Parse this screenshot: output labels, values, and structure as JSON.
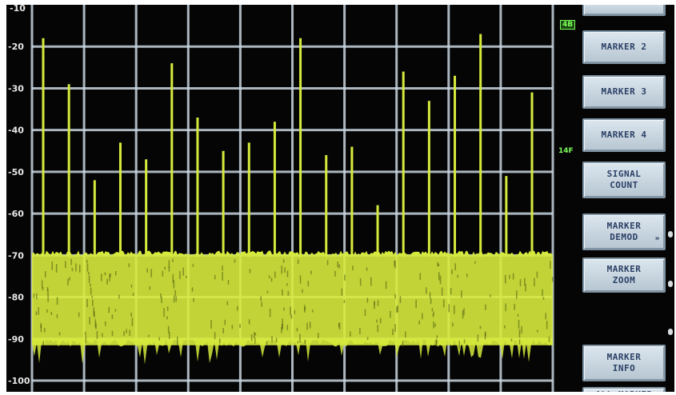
{
  "y_axis": {
    "labels": [
      "-20",
      "-30",
      "-40",
      "-50",
      "-60",
      "-70",
      "-80",
      "-90",
      "-100"
    ],
    "top_label": "-10"
  },
  "side_tags": {
    "top_tag": "4B",
    "mid_tag": "14F"
  },
  "softkeys": [
    {
      "id": "marker-1",
      "lines": [
        ""
      ]
    },
    {
      "id": "marker-2",
      "lines": [
        "MARKER 2"
      ]
    },
    {
      "id": "marker-3",
      "lines": [
        "MARKER 3"
      ]
    },
    {
      "id": "marker-4",
      "lines": [
        "MARKER 4"
      ]
    },
    {
      "id": "signal-count",
      "lines": [
        "SIGNAL",
        "COUNT"
      ]
    },
    {
      "id": "marker-demod",
      "lines": [
        "MARKER",
        "DEMOD"
      ],
      "arrow": "»"
    },
    {
      "id": "marker-zoom",
      "lines": [
        "MARKER",
        "ZOOM"
      ]
    },
    {
      "id": "marker-info",
      "lines": [
        "MARKER",
        "INFO"
      ]
    },
    {
      "id": "all-marker",
      "lines": [
        "ALL MARKER"
      ]
    }
  ],
  "spectrum": {
    "trace_color": "#d6ea3c",
    "grid_color": "#c9d6e0",
    "noise_floor_top_db": -70,
    "noise_floor_bottom_db": -90,
    "peaks_db": [
      -18,
      -29,
      -52,
      -43,
      -47,
      -24,
      -37,
      -45,
      -43,
      -38,
      -18,
      -46,
      -44,
      -58,
      -26,
      -33,
      -27,
      -17,
      -51,
      -31
    ]
  }
}
